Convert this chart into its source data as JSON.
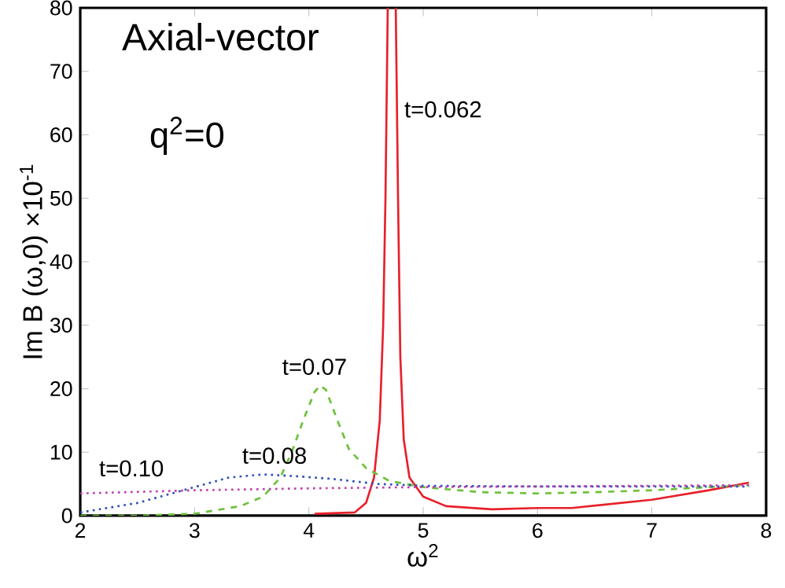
{
  "chart_data": {
    "type": "line",
    "title": "Axial-vector",
    "xlabel": "ω$^{2}$",
    "ylabel": "Im B (ω,0) ×10$^{-1}$",
    "annotations": [
      "q$^{2}$=0"
    ],
    "xlim": [
      2,
      8
    ],
    "xticks": [
      2,
      3,
      4,
      5,
      6,
      7,
      8
    ],
    "ylim": [
      0,
      80
    ],
    "yticks": [
      0,
      10,
      20,
      30,
      40,
      50,
      60,
      70,
      80
    ],
    "grid": false,
    "series": [
      {
        "name": "t=0.062",
        "color": "#e8202a",
        "line_style": "solid",
        "x": [
          4.05,
          4.4,
          4.5,
          4.57,
          4.62,
          4.65,
          4.67,
          4.69,
          4.72,
          4.76,
          4.78,
          4.8,
          4.83,
          4.88,
          5,
          5.2,
          5.6,
          6,
          6.3,
          7,
          7.5,
          7.85
        ],
        "values": [
          0.3,
          0.5,
          2,
          6,
          15,
          30,
          50,
          80,
          null,
          80,
          50,
          25,
          12,
          6,
          3,
          1.5,
          1,
          1.2,
          1.2,
          2.5,
          4,
          5.2
        ]
      },
      {
        "name": "t=0.07",
        "color": "#6cc13a",
        "line_style": "dashed",
        "x": [
          2,
          2.5,
          3,
          3.4,
          3.6,
          3.75,
          3.85,
          3.95,
          4.05,
          4.1,
          4.15,
          4.25,
          4.35,
          4.5,
          4.7,
          5,
          5.5,
          6,
          6.5,
          7,
          7.5,
          7.85
        ],
        "values": [
          0,
          0,
          0.3,
          1.5,
          3,
          6,
          10,
          15,
          19.5,
          20.5,
          19.8,
          15,
          10.5,
          7.5,
          5.5,
          4.5,
          3.7,
          3.5,
          3.7,
          4,
          4.5,
          4.8
        ]
      },
      {
        "name": "t=0.08",
        "color": "#2e4fb5",
        "line_style": "dotted",
        "x": [
          2,
          2.5,
          2.8,
          3,
          3.3,
          3.6,
          3.9,
          4.2,
          4.6,
          5,
          6,
          7,
          7.85
        ],
        "values": [
          0.5,
          2,
          3.5,
          4.5,
          6,
          6.5,
          6.2,
          5.8,
          5,
          4.7,
          4.6,
          4.6,
          4.6
        ]
      },
      {
        "name": "t=0.10",
        "color": "#c040b0",
        "line_style": "dotted",
        "x": [
          2,
          3,
          4,
          5,
          6,
          7,
          7.85
        ],
        "values": [
          3.5,
          4,
          4.3,
          4.5,
          4.6,
          4.7,
          4.8
        ]
      }
    ]
  }
}
